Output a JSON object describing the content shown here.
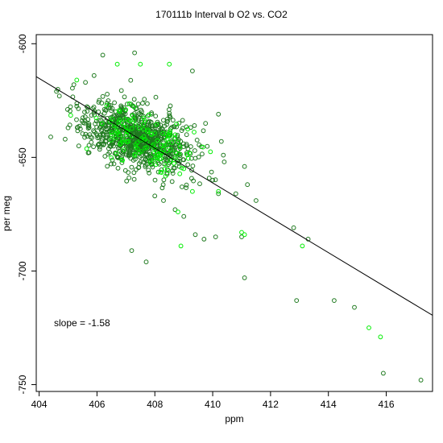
{
  "chart_data": {
    "type": "scatter",
    "title": "170111b   Interval b O2 vs. CO2",
    "xlabel": "ppm",
    "ylabel": "per meg",
    "xlim": [
      403.9,
      417.6
    ],
    "ylim": [
      -753,
      -596
    ],
    "xticks": [
      404,
      406,
      408,
      410,
      412,
      414,
      416
    ],
    "yticks": [
      -600,
      -650,
      -700,
      -750
    ],
    "annotation": "slope =  -1.58",
    "fit_line": {
      "slope": -1.58,
      "x": [
        403.9,
        417.6
      ],
      "y": [
        -614.5,
        -719.5
      ]
    },
    "colors": {
      "series_dark": "#1f7a1f",
      "series_bright": "#00ee00",
      "fit_line": "#000000",
      "axes": "#000000"
    },
    "series": [
      {
        "color": "#1f7a1f",
        "cluster": {
          "n": 850,
          "center": [
            407.4,
            -641
          ],
          "sd": [
            0.9,
            7.2
          ],
          "corr": -0.42,
          "seed": 17
        },
        "outliers": [
          [
            404.6,
            -621
          ],
          [
            404.7,
            -623
          ],
          [
            404.4,
            -641
          ],
          [
            405.0,
            -637
          ],
          [
            404.9,
            -642
          ],
          [
            405.2,
            -618
          ],
          [
            405.6,
            -617
          ],
          [
            405.9,
            -614
          ],
          [
            406.2,
            -605
          ],
          [
            407.3,
            -604
          ],
          [
            409.3,
            -612
          ],
          [
            409.1,
            -640
          ],
          [
            410.2,
            -631
          ],
          [
            410.3,
            -643
          ],
          [
            410.4,
            -652
          ],
          [
            410.0,
            -660
          ],
          [
            410.2,
            -666
          ],
          [
            410.1,
            -685
          ],
          [
            409.7,
            -686
          ],
          [
            409.4,
            -684
          ],
          [
            409.0,
            -676
          ],
          [
            408.7,
            -673
          ],
          [
            408.3,
            -669
          ],
          [
            408.0,
            -667
          ],
          [
            407.2,
            -691
          ],
          [
            407.7,
            -696
          ],
          [
            410.8,
            -666
          ],
          [
            411.2,
            -662
          ],
          [
            411.1,
            -654
          ],
          [
            411.5,
            -669
          ],
          [
            411.0,
            -685
          ],
          [
            411.1,
            -703
          ],
          [
            412.8,
            -681
          ],
          [
            413.3,
            -686
          ],
          [
            412.9,
            -713
          ],
          [
            414.2,
            -713
          ],
          [
            414.9,
            -716
          ],
          [
            415.9,
            -745
          ],
          [
            417.2,
            -748
          ]
        ]
      },
      {
        "color": "#00ee00",
        "cluster": {
          "n": 140,
          "center": [
            407.6,
            -643
          ],
          "sd": [
            0.8,
            6.5
          ],
          "corr": -0.4,
          "seed": 91
        },
        "outliers": [
          [
            405.3,
            -616
          ],
          [
            406.7,
            -609
          ],
          [
            407.5,
            -609
          ],
          [
            408.5,
            -609
          ],
          [
            409.0,
            -655
          ],
          [
            409.3,
            -665
          ],
          [
            408.8,
            -674
          ],
          [
            408.9,
            -689
          ],
          [
            410.2,
            -665
          ],
          [
            411.0,
            -683
          ],
          [
            411.1,
            -684
          ],
          [
            413.1,
            -689
          ],
          [
            415.4,
            -725
          ],
          [
            415.8,
            -729
          ]
        ]
      }
    ]
  }
}
